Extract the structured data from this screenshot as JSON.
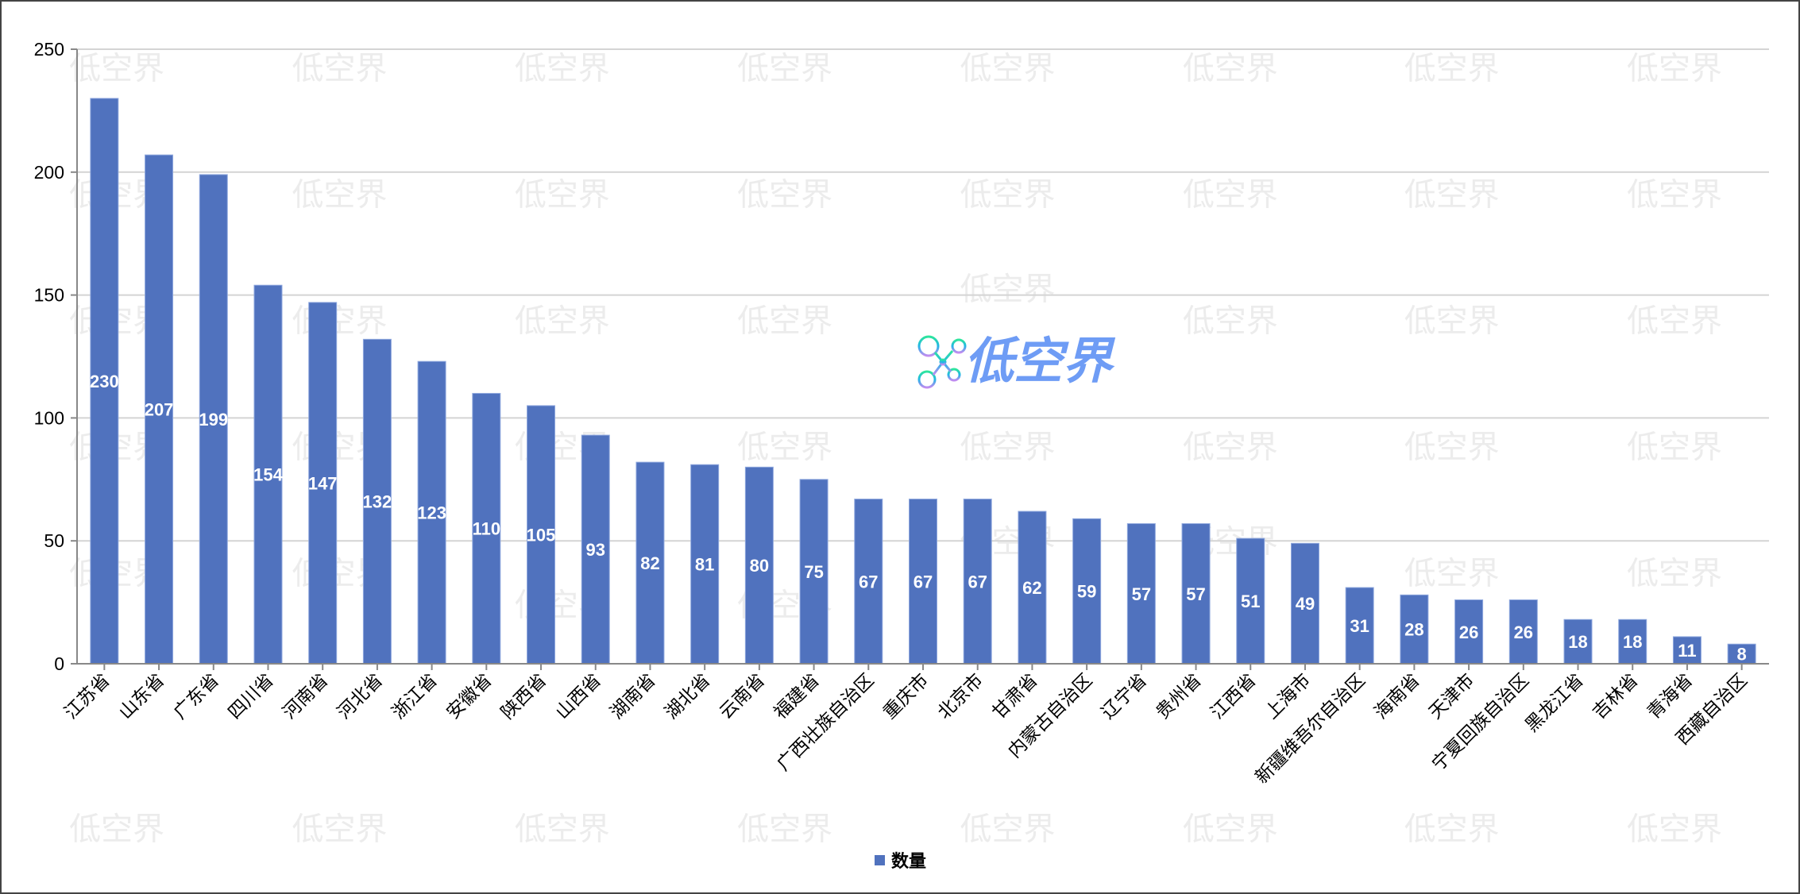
{
  "chart_data": {
    "type": "bar",
    "title": "",
    "xlabel": "",
    "ylabel": "",
    "ylim": [
      0,
      250
    ],
    "yticks": [
      0,
      50,
      100,
      150,
      200,
      250
    ],
    "grid": true,
    "legend_placement": "bottom",
    "bar_color": "#5072be",
    "categories": [
      "江苏省",
      "山东省",
      "广东省",
      "四川省",
      "河南省",
      "河北省",
      "浙江省",
      "安徽省",
      "陕西省",
      "山西省",
      "湖南省",
      "湖北省",
      "云南省",
      "福建省",
      "广西壮族自治区",
      "重庆市",
      "北京市",
      "甘肃省",
      "内蒙古自治区",
      "辽宁省",
      "贵州省",
      "江西省",
      "上海市",
      "新疆维吾尔自治区",
      "海南省",
      "天津市",
      "宁夏回族自治区",
      "黑龙江省",
      "吉林省",
      "青海省",
      "西藏自治区"
    ],
    "series": [
      {
        "name": "数量",
        "values": [
          230,
          207,
          199,
          154,
          147,
          132,
          123,
          110,
          105,
          93,
          82,
          81,
          80,
          75,
          67,
          67,
          67,
          62,
          59,
          57,
          57,
          51,
          49,
          31,
          28,
          26,
          26,
          18,
          18,
          11,
          8
        ]
      }
    ]
  },
  "watermark": "低空界",
  "logo": {
    "text": "低空界",
    "color": "#6e9cf5"
  }
}
